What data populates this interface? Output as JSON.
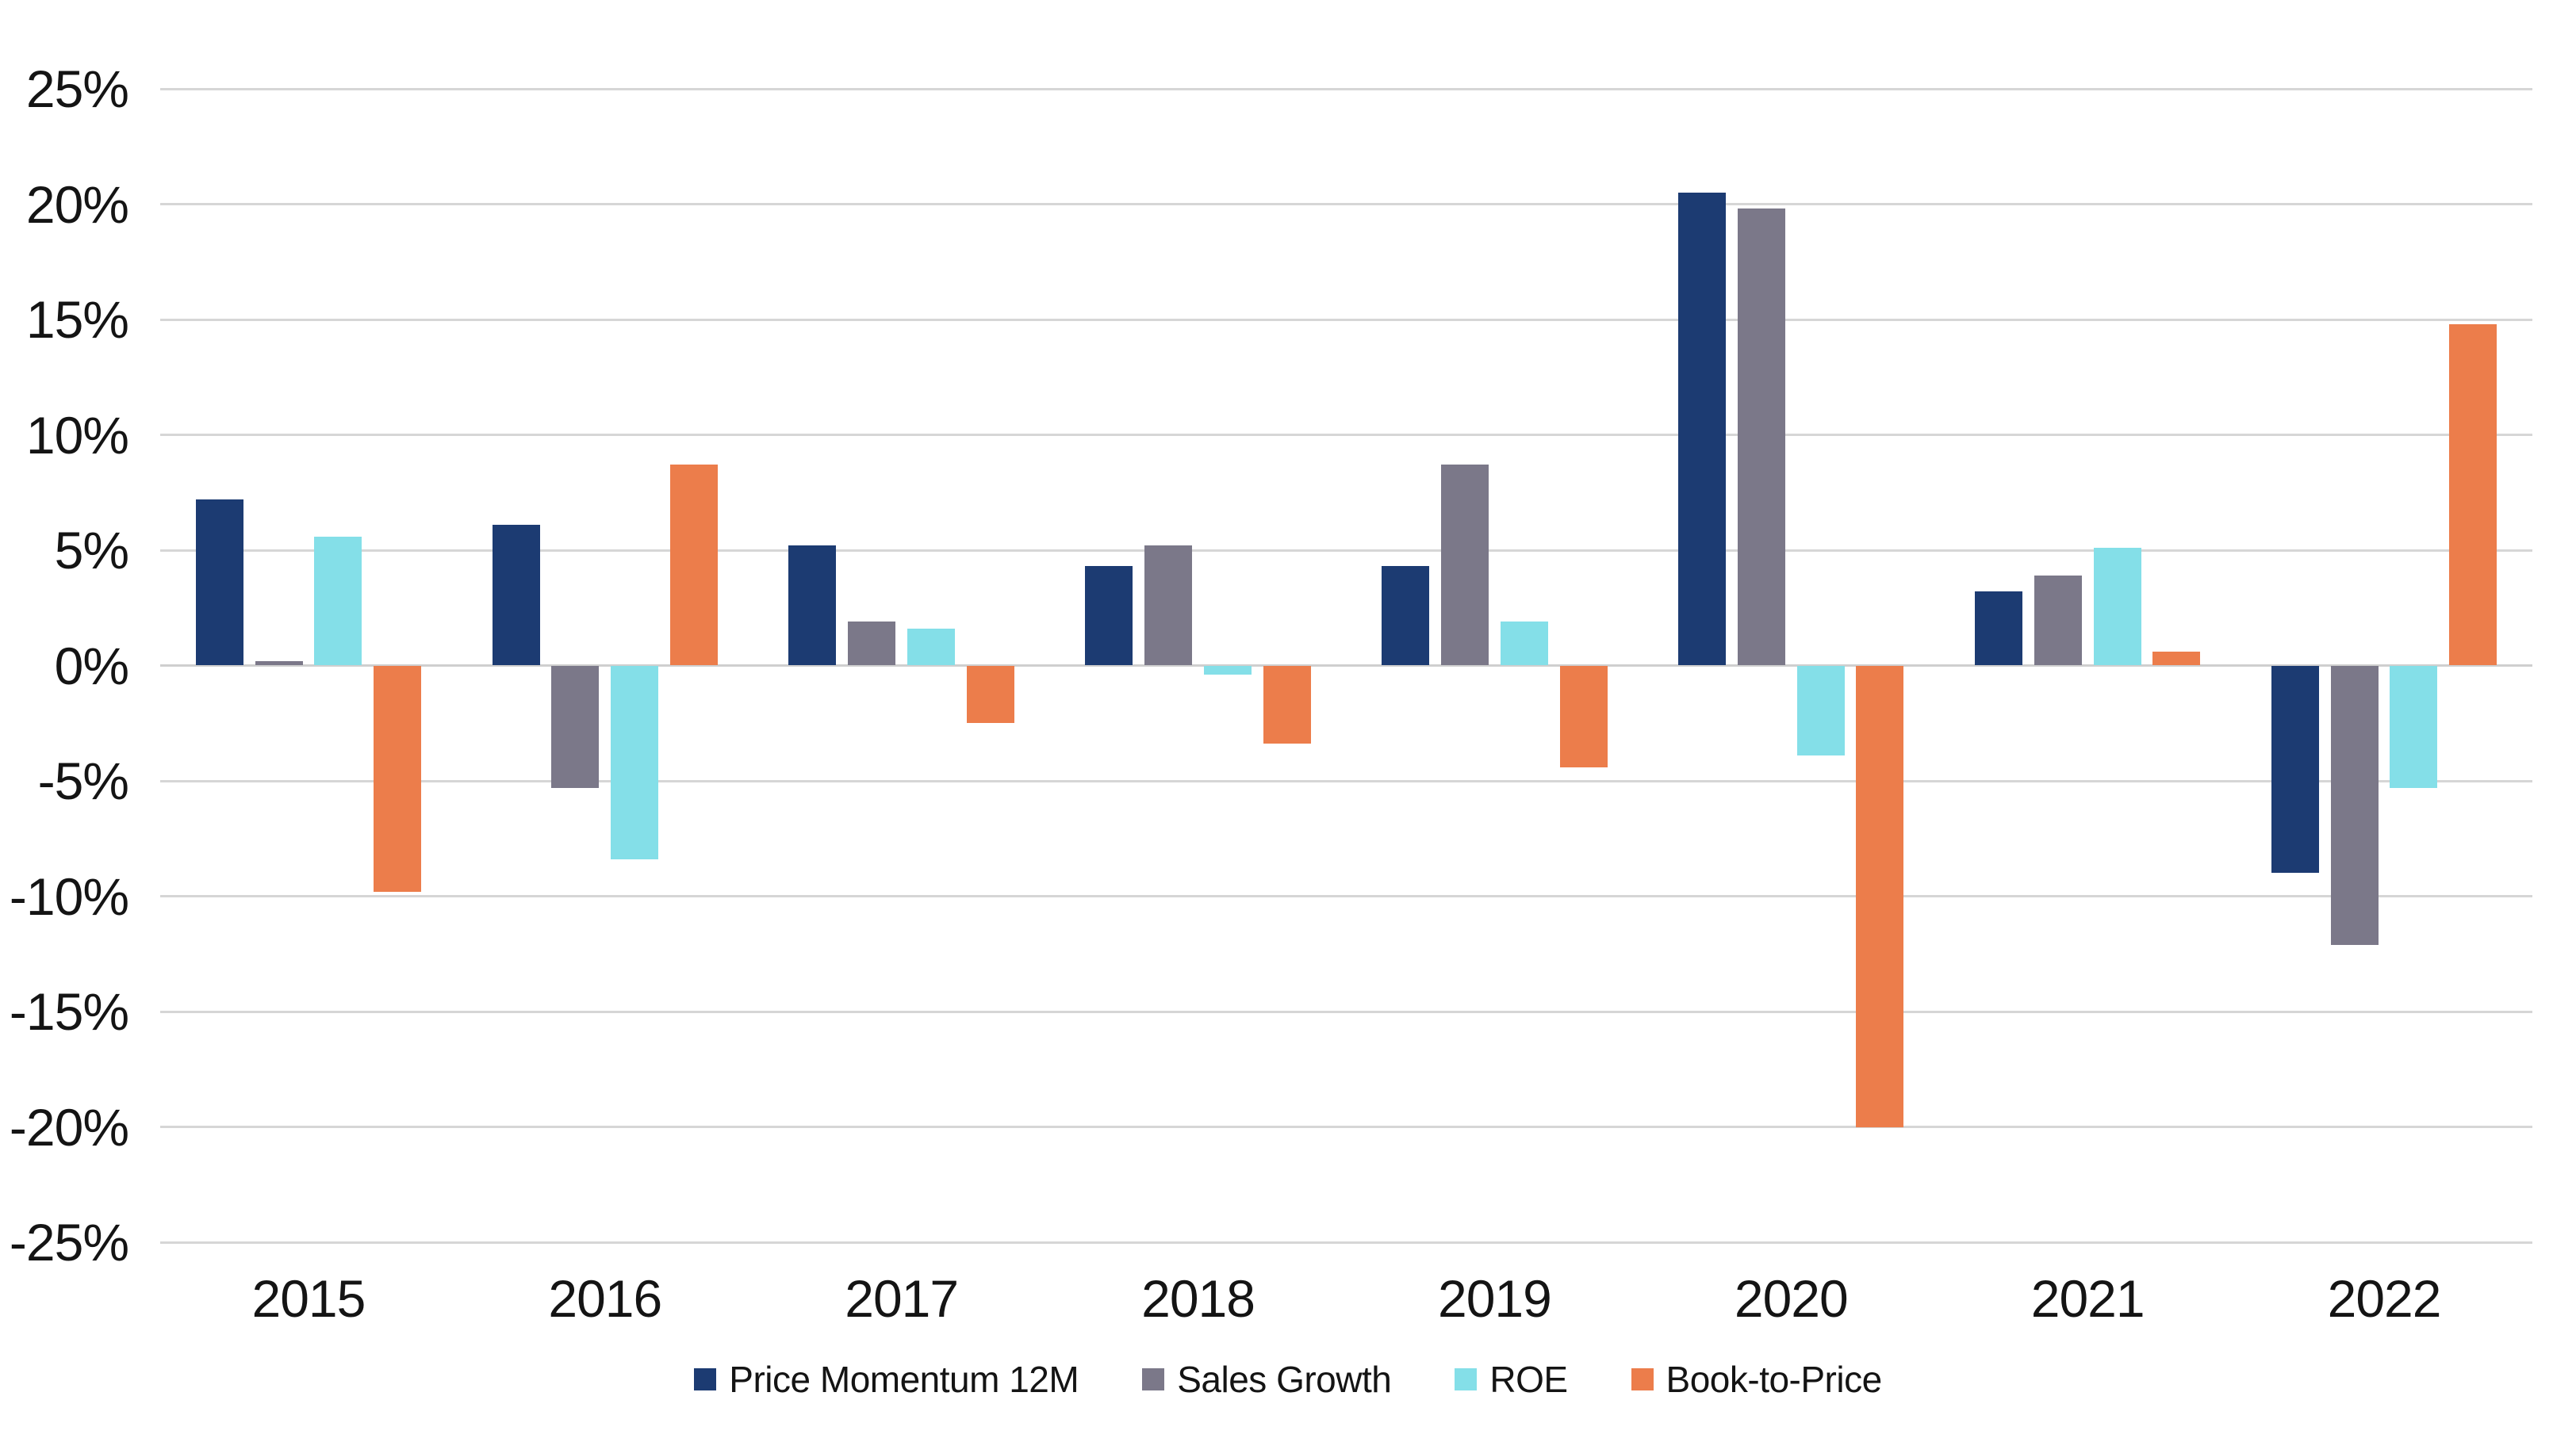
{
  "chart_data": {
    "type": "bar",
    "title": "",
    "categories": [
      "2015",
      "2016",
      "2017",
      "2018",
      "2019",
      "2020",
      "2021",
      "2022"
    ],
    "series": [
      {
        "name": "Price Momentum 12M",
        "color": "#1c3b72",
        "values": [
          7.2,
          6.1,
          5.2,
          4.3,
          4.3,
          20.5,
          3.2,
          -9.0
        ]
      },
      {
        "name": "Sales Growth",
        "color": "#7b7889",
        "values": [
          0.2,
          -5.3,
          1.9,
          5.2,
          8.7,
          19.8,
          3.9,
          -12.1
        ]
      },
      {
        "name": "ROE",
        "color": "#84dfe8",
        "values": [
          5.6,
          -8.4,
          1.6,
          -0.4,
          1.9,
          -3.9,
          5.1,
          -5.3
        ]
      },
      {
        "name": "Book-to-Price",
        "color": "#ec7d4b",
        "values": [
          -9.8,
          8.7,
          -2.5,
          -3.4,
          -4.4,
          -20.0,
          0.6,
          14.8
        ]
      }
    ],
    "xlabel": "",
    "ylabel": "",
    "ylim": [
      -25,
      25
    ],
    "ytick_step": 5,
    "ytick_labels": [
      "25%",
      "20%",
      "15%",
      "10%",
      "5%",
      "0%",
      "-5%",
      "-10%",
      "-15%",
      "-20%",
      "-25%"
    ],
    "grid": "horizontal",
    "legend_position": "bottom",
    "colors": {
      "gridline": "#d6d6d6",
      "axis_text": "#141414",
      "background": "#ffffff"
    }
  }
}
